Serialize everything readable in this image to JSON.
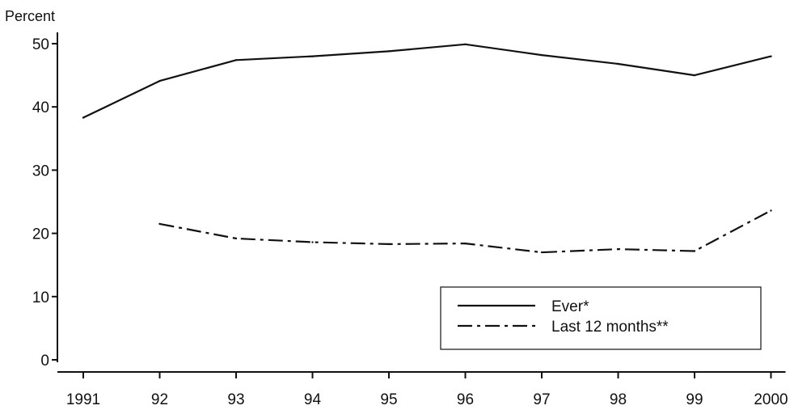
{
  "chart_data": {
    "type": "line",
    "ylabel": "Percent",
    "x_ticks": [
      "1991",
      "92",
      "93",
      "94",
      "95",
      "96",
      "97",
      "98",
      "99",
      "2000"
    ],
    "y_ticks": [
      "0",
      "10",
      "20",
      "30",
      "40",
      "50"
    ],
    "ylim": [
      0,
      50
    ],
    "grid": false,
    "legend_position": "bottom-right",
    "series": [
      {
        "name": "Ever*",
        "line_style": "solid",
        "color": "#111111",
        "values": [
          38.3,
          44.1,
          47.4,
          48.0,
          48.8,
          49.9,
          48.2,
          46.8,
          45.0,
          48.0
        ]
      },
      {
        "name": "Last 12 months**",
        "line_style": "dash-dot",
        "color": "#111111",
        "values": [
          null,
          21.5,
          19.2,
          18.6,
          18.3,
          18.4,
          17.0,
          17.5,
          17.2,
          23.6
        ]
      }
    ]
  }
}
